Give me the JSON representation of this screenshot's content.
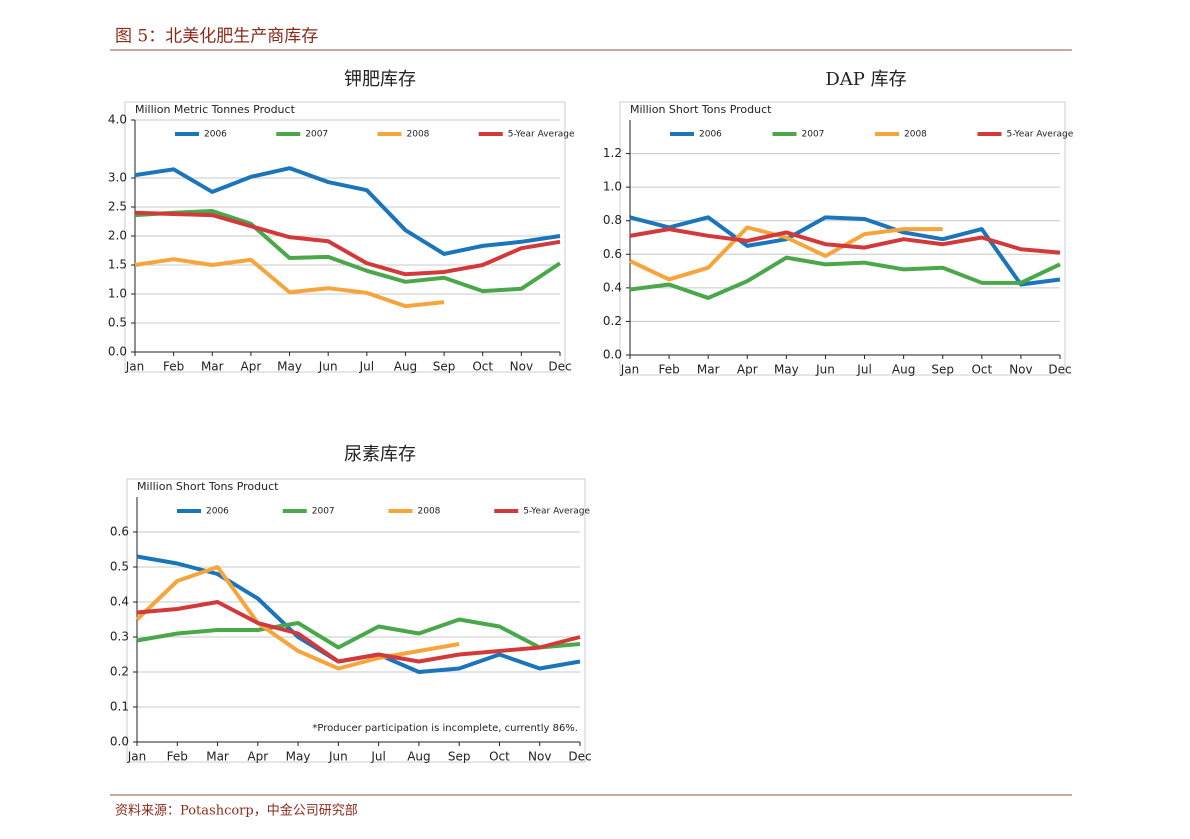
{
  "figure_title": "图 5：北美化肥生产商库存",
  "source": "资料来源：Potashcorp，中金公司研究部",
  "chart_data": [
    {
      "type": "line",
      "title": "钾肥库存",
      "y_label": "Million Metric Tonnes Product",
      "categories": [
        "Jan",
        "Feb",
        "Mar",
        "Apr",
        "May",
        "Jun",
        "Jul",
        "Aug",
        "Sep",
        "Oct",
        "Nov",
        "Dec"
      ],
      "series": [
        {
          "name": "2006",
          "color": "#1a75bb",
          "values": [
            3.05,
            3.15,
            2.76,
            3.02,
            3.17,
            2.93,
            2.79,
            2.1,
            1.69,
            1.83,
            1.9,
            2.0
          ]
        },
        {
          "name": "2007",
          "color": "#4aa84a",
          "values": [
            2.36,
            2.4,
            2.43,
            2.21,
            1.62,
            1.64,
            1.4,
            1.21,
            1.28,
            1.05,
            1.09,
            1.53
          ]
        },
        {
          "name": "2008",
          "color": "#f5a53b",
          "values": [
            1.5,
            1.6,
            1.5,
            1.59,
            1.03,
            1.1,
            1.02,
            0.79,
            0.86,
            null,
            null,
            null
          ]
        },
        {
          "name": "5-Year Average",
          "color": "#d2393b",
          "values": [
            2.4,
            2.38,
            2.36,
            2.17,
            1.98,
            1.91,
            1.53,
            1.34,
            1.38,
            1.5,
            1.79,
            1.9
          ]
        }
      ],
      "ylim": [
        0,
        4.0
      ],
      "yticks": [
        {
          "value": 0,
          "label": "0.0"
        },
        0.5,
        {
          "value": 1,
          "label": "1.0"
        },
        1.5,
        {
          "value": 2,
          "label": "2.0"
        },
        2.5,
        {
          "value": 3,
          "label": "3.0"
        },
        {
          "value": 4,
          "label": "4.0"
        }
      ],
      "grid": true,
      "legend": "top"
    },
    {
      "type": "line",
      "title": "DAP 库存",
      "y_label": "Million Short Tons Product",
      "categories": [
        "Jan",
        "Feb",
        "Mar",
        "Apr",
        "May",
        "Jun",
        "Jul",
        "Aug",
        "Sep",
        "Oct",
        "Nov",
        "Dec"
      ],
      "series": [
        {
          "name": "2006",
          "color": "#1a75bb",
          "values": [
            0.82,
            0.76,
            0.82,
            0.65,
            0.69,
            0.82,
            0.81,
            0.73,
            0.69,
            0.75,
            0.42,
            0.45
          ]
        },
        {
          "name": "2007",
          "color": "#4aa84a",
          "values": [
            0.39,
            0.42,
            0.34,
            0.44,
            0.58,
            0.54,
            0.55,
            0.51,
            0.52,
            0.43,
            0.43,
            0.54
          ]
        },
        {
          "name": "2008",
          "color": "#f5a53b",
          "values": [
            0.56,
            0.45,
            0.52,
            0.76,
            0.7,
            0.59,
            0.72,
            0.75,
            0.75,
            null,
            null,
            null
          ]
        },
        {
          "name": "5-Year Average",
          "color": "#d2393b",
          "values": [
            0.71,
            0.75,
            0.71,
            0.68,
            0.73,
            0.66,
            0.64,
            0.69,
            0.66,
            0.7,
            0.63,
            0.61
          ]
        }
      ],
      "ylim": [
        0,
        1.4
      ],
      "yticks": [
        {
          "value": 0,
          "label": "0.0"
        },
        0.2,
        0.4,
        0.6,
        0.8,
        {
          "value": 1,
          "label": "1.0"
        },
        1.2
      ],
      "grid": true,
      "legend": "top"
    },
    {
      "type": "line",
      "title": "尿素库存",
      "y_label": "Million Short Tons Product",
      "categories": [
        "Jan",
        "Feb",
        "Mar",
        "Apr",
        "May",
        "Jun",
        "Jul",
        "Aug",
        "Sep",
        "Oct",
        "Nov",
        "Dec"
      ],
      "series": [
        {
          "name": "2006",
          "color": "#1a75bb",
          "values": [
            0.53,
            0.51,
            0.48,
            0.41,
            0.3,
            0.23,
            0.25,
            0.2,
            0.21,
            0.25,
            0.21,
            0.23
          ]
        },
        {
          "name": "2007",
          "color": "#4aa84a",
          "values": [
            0.29,
            0.31,
            0.32,
            0.32,
            0.34,
            0.27,
            0.33,
            0.31,
            0.35,
            0.33,
            0.27,
            0.28
          ]
        },
        {
          "name": "2008",
          "color": "#f5a53b",
          "values": [
            0.35,
            0.46,
            0.5,
            0.34,
            0.26,
            0.21,
            0.24,
            0.26,
            0.28,
            null,
            null,
            null
          ]
        },
        {
          "name": "5-Year Average",
          "color": "#d2393b",
          "values": [
            0.37,
            0.38,
            0.4,
            0.34,
            0.31,
            0.23,
            0.25,
            0.23,
            0.25,
            0.26,
            0.27,
            0.3
          ]
        }
      ],
      "ylim": [
        0,
        0.7
      ],
      "yticks": [
        {
          "value": 0,
          "label": "0.0"
        },
        0.1,
        0.2,
        0.3,
        0.4,
        0.5,
        0.6
      ],
      "grid": true,
      "legend": "top",
      "annotation": "*Producer participation is incomplete, currently 86%."
    }
  ]
}
